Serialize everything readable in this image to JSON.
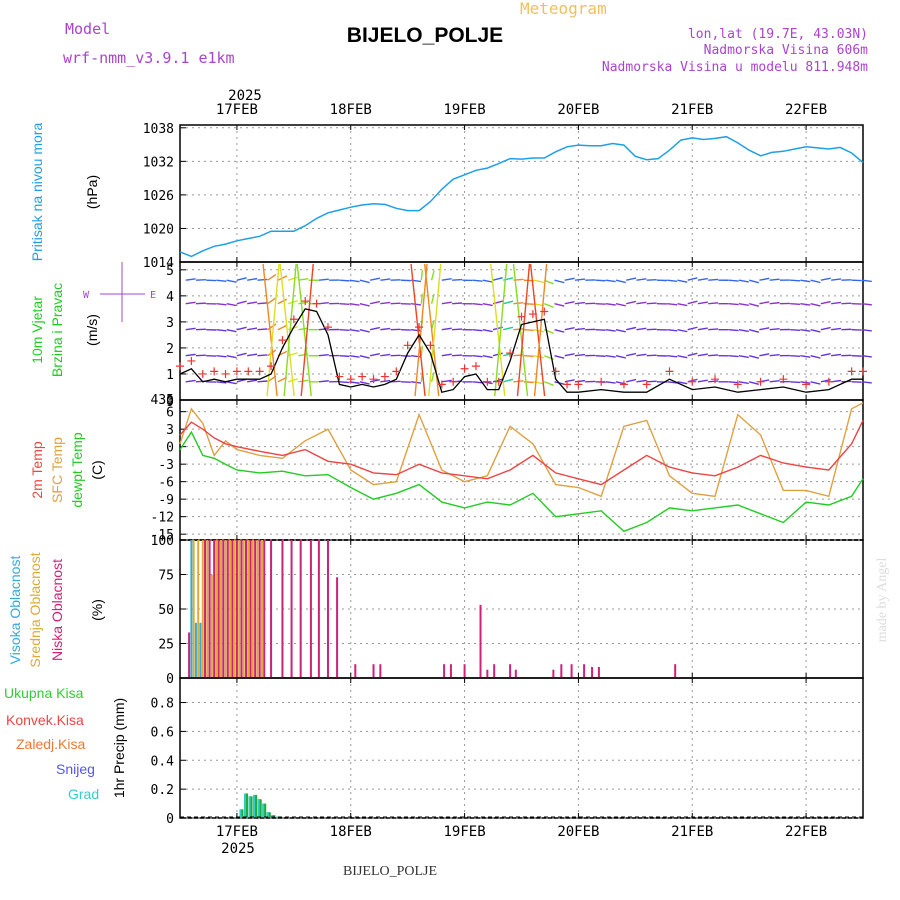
{
  "header": {
    "model_label": "Model",
    "model_name": "wrf-nmm_v3.9.1  e1km",
    "station": "BIJELO_POLJE",
    "product": "Meteogram",
    "lonlat": "lon,lat (19.7E, 43.03N)",
    "elevation": "Nadmorska Visina 606m",
    "model_elevation": "Nadmorska Visina u modelu 811.948m",
    "year": "2025",
    "credit": "made by Angel",
    "footer_station": "BIJELO_POLJE"
  },
  "colors": {
    "pressure": "#1ea0e6",
    "t2m": "#ee4444",
    "sfc": "#e0a040",
    "dewpt": "#22cc22",
    "high_cloud": "#33aadd",
    "mid_cloud": "#ddaa33",
    "low_cloud": "#cc2277",
    "precip": "#22aa33",
    "grad": "#33cccc",
    "model_text": "#aa44cc",
    "product_text": "#f0c060"
  },
  "chart_data": [
    {
      "type": "line",
      "x_ticks": [
        "17FEB",
        "18FEB",
        "19FEB",
        "20FEB",
        "21FEB",
        "22FEB"
      ],
      "ylabel": "(hPa)",
      "side_label": "Pritisak na nivou mora",
      "yticks": [
        1014,
        1020,
        1026,
        1032,
        1038
      ],
      "ylim": [
        1014,
        1038.5
      ],
      "grid": true,
      "series": [
        {
          "x": [
            16.5,
            16.6,
            16.7,
            16.8,
            16.9,
            17.0,
            17.1,
            17.2,
            17.3,
            17.4,
            17.5,
            17.6,
            17.7,
            17.8,
            17.9,
            18.0,
            18.1,
            18.2,
            18.3,
            18.4,
            18.5,
            18.6,
            18.7,
            18.8,
            18.9,
            19.0,
            19.1,
            19.2,
            19.3,
            19.4,
            19.5,
            19.6,
            19.7,
            19.8,
            19.9,
            20.0,
            20.1,
            20.2,
            20.3,
            20.4,
            20.5,
            20.6,
            20.7,
            20.8,
            20.9,
            21.0,
            21.1,
            21.2,
            21.3,
            21.4,
            21.5,
            21.6,
            21.7,
            21.8,
            21.9,
            22.0,
            22.1,
            22.2,
            22.3,
            22.4,
            22.5
          ],
          "values": [
            1015.8,
            1015.0,
            1016.0,
            1016.8,
            1017.2,
            1017.8,
            1018.2,
            1018.6,
            1019.5,
            1019.5,
            1019.5,
            1020.5,
            1021.8,
            1022.8,
            1023.3,
            1023.8,
            1024.2,
            1024.4,
            1024.3,
            1023.6,
            1023.2,
            1023.2,
            1024.8,
            1027.0,
            1028.8,
            1029.6,
            1030.4,
            1030.8,
            1031.6,
            1032.5,
            1032.4,
            1032.6,
            1032.6,
            1033.7,
            1034.6,
            1034.9,
            1034.8,
            1034.8,
            1035.2,
            1034.9,
            1032.9,
            1032.3,
            1032.5,
            1034.0,
            1035.8,
            1036.2,
            1035.9,
            1036.1,
            1036.4,
            1035.3,
            1034.0,
            1033.0,
            1033.6,
            1033.8,
            1034.2,
            1034.6,
            1034.4,
            1034.2,
            1034.5,
            1033.5,
            1031.8
          ]
        }
      ]
    },
    {
      "type": "line",
      "ylabel": "(m/s)",
      "side_label_1": "10m Vjetar",
      "side_label_2": "Brzina i Pravac",
      "compass": [
        "W",
        "E"
      ],
      "yticks": [
        0,
        1,
        2,
        3,
        4,
        5
      ],
      "overlap_tick": "435",
      "ylim": [
        0,
        5.3
      ],
      "grid": true,
      "speed_series": {
        "x": [
          16.5,
          16.6,
          16.7,
          16.8,
          16.9,
          17.0,
          17.1,
          17.2,
          17.3,
          17.4,
          17.5,
          17.6,
          17.7,
          17.8,
          17.9,
          18.0,
          18.1,
          18.2,
          18.3,
          18.4,
          18.5,
          18.6,
          18.7,
          18.8,
          18.9,
          19.0,
          19.1,
          19.2,
          19.3,
          19.4,
          19.5,
          19.6,
          19.7,
          19.8,
          19.9,
          20.0,
          20.2,
          20.4,
          20.6,
          20.8,
          21.0,
          21.2,
          21.4,
          21.6,
          21.8,
          22.0,
          22.2,
          22.4,
          22.5
        ],
        "values": [
          1.0,
          1.2,
          0.7,
          0.8,
          0.7,
          0.8,
          0.8,
          0.8,
          1.0,
          2.0,
          2.8,
          3.5,
          3.4,
          2.5,
          0.6,
          0.5,
          0.6,
          0.5,
          0.6,
          0.8,
          1.8,
          2.5,
          1.8,
          0.3,
          0.4,
          0.9,
          1.0,
          0.4,
          0.4,
          1.5,
          2.9,
          3.0,
          3.1,
          0.8,
          0.3,
          0.3,
          0.4,
          0.3,
          0.3,
          0.8,
          0.4,
          0.5,
          0.3,
          0.4,
          0.5,
          0.3,
          0.4,
          0.8,
          0.8
        ]
      }
    },
    {
      "type": "line",
      "ylabel": "(C)",
      "side_label_1": "2m Temp",
      "side_label_2": "SFC Temp",
      "side_label_3": "dewpt Temp",
      "yticks": [
        -15,
        -12,
        -9,
        -6,
        -3,
        0,
        3,
        6
      ],
      "top_tick": "9",
      "ylim": [
        -16,
        8
      ],
      "grid": true,
      "series": [
        {
          "x": [
            16.5,
            16.6,
            16.7,
            16.8,
            16.9,
            17.0,
            17.2,
            17.4,
            17.6,
            17.8,
            18.0,
            18.2,
            18.4,
            18.6,
            18.8,
            19.0,
            19.2,
            19.4,
            19.6,
            19.8,
            20.0,
            20.2,
            20.4,
            20.6,
            20.8,
            21.0,
            21.2,
            21.4,
            21.6,
            21.8,
            22.0,
            22.2,
            22.4,
            22.5
          ],
          "values": [
            2.0,
            4.2,
            3.0,
            1.5,
            0.5,
            0.0,
            -0.8,
            -1.5,
            -0.5,
            -2.5,
            -3.0,
            -4.5,
            -4.8,
            -3.0,
            -4.5,
            -5.0,
            -5.5,
            -4.0,
            -1.5,
            -4.5,
            -5.5,
            -6.5,
            -4.0,
            -1.5,
            -3.5,
            -4.5,
            -5.0,
            -3.5,
            -1.5,
            -2.8,
            -3.5,
            -4.0,
            0.5,
            4.5
          ]
        },
        {
          "x": [
            16.5,
            16.6,
            16.7,
            16.8,
            16.9,
            17.0,
            17.2,
            17.4,
            17.6,
            17.8,
            18.0,
            18.2,
            18.4,
            18.6,
            18.8,
            19.0,
            19.2,
            19.4,
            19.6,
            19.8,
            20.0,
            20.2,
            20.4,
            20.6,
            20.8,
            21.0,
            21.2,
            21.4,
            21.6,
            21.8,
            22.0,
            22.2,
            22.4,
            22.5
          ],
          "values": [
            0.5,
            6.5,
            4.0,
            -1.5,
            1.0,
            -0.5,
            -1.5,
            -2.0,
            1.0,
            3.0,
            -4.0,
            -6.5,
            -6.0,
            5.5,
            -4.0,
            -6.0,
            -5.0,
            3.5,
            0.5,
            -6.5,
            -7.0,
            -8.5,
            3.5,
            4.5,
            -5.0,
            -8.0,
            -8.5,
            5.5,
            2.0,
            -7.5,
            -7.5,
            -8.5,
            6.5,
            7.5
          ]
        },
        {
          "x": [
            16.5,
            16.6,
            16.7,
            16.8,
            16.9,
            17.0,
            17.2,
            17.4,
            17.6,
            17.8,
            18.0,
            18.2,
            18.4,
            18.6,
            18.8,
            19.0,
            19.2,
            19.4,
            19.6,
            19.8,
            20.0,
            20.2,
            20.4,
            20.6,
            20.8,
            21.0,
            21.2,
            21.4,
            21.6,
            21.8,
            22.0,
            22.2,
            22.4,
            22.5
          ],
          "values": [
            -0.5,
            2.5,
            -1.5,
            -2.0,
            -3.0,
            -4.0,
            -4.5,
            -4.2,
            -5.0,
            -4.8,
            -7.0,
            -9.0,
            -8.0,
            -6.5,
            -9.5,
            -10.5,
            -9.5,
            -10.0,
            -8.0,
            -12.0,
            -11.5,
            -11.0,
            -14.5,
            -13.0,
            -10.5,
            -11.0,
            -10.5,
            -10.0,
            -11.5,
            -13.0,
            -9.5,
            -10.0,
            -8.5,
            -5.5
          ]
        }
      ]
    },
    {
      "type": "bar",
      "ylabel": "(%)",
      "side_label_1": "Visoka Oblacnost",
      "side_label_2": "Srednja Oblacnost",
      "side_label_3": "Niska Oblacnost",
      "yticks": [
        0,
        25,
        50,
        75,
        100
      ],
      "ylim": [
        0,
        100
      ],
      "grid": true,
      "high": {
        "x": [
          16.6,
          16.64,
          16.68
        ],
        "values": [
          100,
          40,
          40
        ]
      },
      "mid": {
        "x": [
          16.62,
          16.66,
          16.7,
          16.74,
          16.78,
          16.82,
          16.86,
          16.9,
          16.94,
          16.98,
          17.02,
          17.06,
          17.1,
          17.14,
          17.18,
          17.22
        ],
        "values": [
          100,
          100,
          100,
          100,
          75,
          100,
          100,
          100,
          100,
          100,
          100,
          100,
          100,
          100,
          100,
          100
        ]
      },
      "low": {
        "x": [
          16.58,
          16.72,
          16.76,
          16.8,
          16.84,
          16.88,
          16.92,
          16.96,
          17.0,
          17.04,
          17.08,
          17.12,
          17.16,
          17.2,
          17.24,
          17.3,
          17.4,
          17.48,
          17.56,
          17.65,
          17.72,
          17.8,
          17.88,
          18.04,
          18.2,
          18.26,
          18.82,
          18.88,
          19.0,
          19.14,
          19.2,
          19.26,
          19.4,
          19.45,
          19.78,
          19.85,
          19.94,
          20.05,
          20.12,
          20.18,
          20.85
        ],
        "values": [
          33,
          100,
          100,
          100,
          100,
          100,
          100,
          100,
          100,
          100,
          100,
          100,
          100,
          100,
          100,
          100,
          100,
          100,
          100,
          100,
          100,
          100,
          73,
          10,
          10,
          10,
          10,
          10,
          10,
          53,
          6,
          10,
          10,
          6,
          6,
          10,
          10,
          10,
          8,
          8,
          10
        ]
      }
    },
    {
      "type": "bar",
      "ylabel": "1hr Precip (mm)",
      "legend": [
        "Ukupna Kisa",
        "Konvek.Kisa",
        "Zaledj.Kisa",
        "Snijeg",
        "Grad"
      ],
      "legend_colors": [
        "#33cc33",
        "#ee4444",
        "#ee7733",
        "#5555ee",
        "#33cccc"
      ],
      "yticks": [
        0,
        0.2,
        0.4,
        0.6,
        0.8
      ],
      "ylim": [
        0,
        0.97
      ],
      "grid": true,
      "series": [
        {
          "x": [
            17.04,
            17.08,
            17.12,
            17.16,
            17.2,
            17.24,
            17.28,
            17.32,
            17.36
          ],
          "values": [
            0.06,
            0.17,
            0.15,
            0.16,
            0.13,
            0.1,
            0.04,
            0.02,
            0.01
          ]
        }
      ]
    }
  ]
}
